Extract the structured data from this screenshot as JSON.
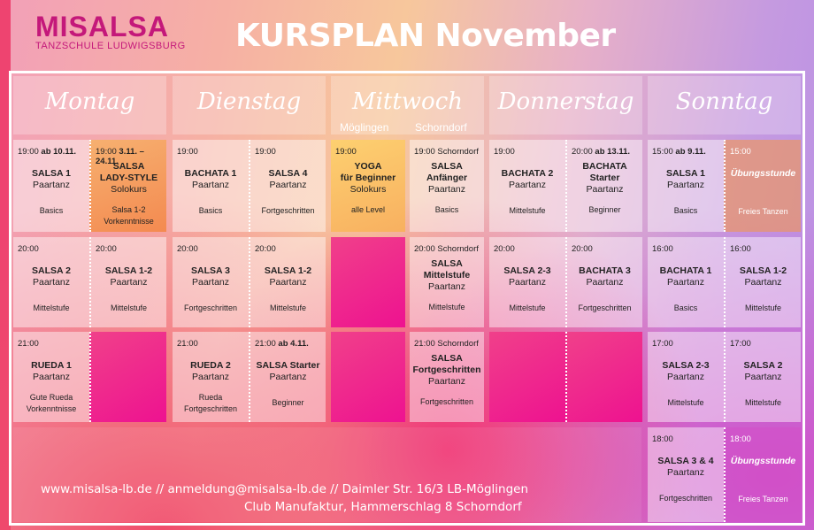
{
  "brand": {
    "name": "MISALSA",
    "subtitle": "TANZSCHULE LUDWIGSBURG",
    "color": "#c4187a"
  },
  "title": "KURSPLAN November",
  "days": [
    {
      "name": "Montag"
    },
    {
      "name": "Dienstag"
    },
    {
      "name": "Mittwoch",
      "locations": [
        "Möglingen",
        "Schorndorf"
      ]
    },
    {
      "name": "Donnerstag"
    },
    {
      "name": "Sonntag"
    }
  ],
  "slots": [
    [
      [
        {
          "time": "19:00",
          "note": "ab 10.11.",
          "title": [
            "SALSA 1"
          ],
          "type": "Paartanz",
          "level": [
            "Basics"
          ]
        },
        {
          "time": "19:00",
          "note": "3.11. – 24.11.",
          "title": [
            "SALSA",
            "LADY-STYLE"
          ],
          "type": "Solokurs",
          "level": [
            "Salsa 1-2",
            "Vorkenntnisse"
          ],
          "style": "orange"
        }
      ],
      [
        {
          "time": "20:00",
          "title": [
            "SALSA 2"
          ],
          "type": "Paartanz",
          "level": [
            "Mittelstufe"
          ]
        },
        {
          "time": "20:00",
          "title": [
            "SALSA 1-2"
          ],
          "type": "Paartanz",
          "level": [
            "Mittelstufe"
          ]
        }
      ],
      [
        {
          "time": "21:00",
          "title": [
            "RUEDA 1"
          ],
          "type": "Paartanz",
          "level": [
            "Gute Rueda",
            "Vorkenntnisse"
          ]
        },
        {
          "style": "empty"
        }
      ]
    ],
    [
      [
        {
          "time": "19:00",
          "title": [
            "BACHATA 1"
          ],
          "type": "Paartanz",
          "level": [
            "Basics"
          ]
        },
        {
          "time": "19:00",
          "title": [
            "SALSA 4"
          ],
          "type": "Paartanz",
          "level": [
            "Fortgeschritten"
          ]
        }
      ],
      [
        {
          "time": "20:00",
          "title": [
            "SALSA 3"
          ],
          "type": "Paartanz",
          "level": [
            "Fortgeschritten"
          ]
        },
        {
          "time": "20:00",
          "title": [
            "SALSA 1-2"
          ],
          "type": "Paartanz",
          "level": [
            "Mittelstufe"
          ]
        }
      ],
      [
        {
          "time": "21:00",
          "title": [
            "RUEDA  2"
          ],
          "type": "Paartanz",
          "level": [
            "Rueda",
            "Fortgeschritten"
          ]
        },
        {
          "time": "21:00",
          "note": "ab 4.11.",
          "title": [
            "SALSA Starter"
          ],
          "type": "Paartanz",
          "level": [
            "Beginner"
          ]
        }
      ]
    ],
    [
      [
        {
          "time": "19:00",
          "title": [
            "YOGA",
            "für Beginner"
          ],
          "type": "Solokurs",
          "level": [
            "alle Level"
          ],
          "style": "yellow"
        },
        {
          "time": "19:00 Schorndorf",
          "title": [
            "SALSA",
            "Anfänger"
          ],
          "type": "Paartanz",
          "level": [
            "Basics"
          ]
        }
      ],
      [
        {
          "style": "empty"
        },
        {
          "time": "20:00 Schorndorf",
          "title": [
            "SALSA",
            "Mittelstufe"
          ],
          "type": "Paartanz",
          "level": [
            "Mittelstufe"
          ]
        }
      ],
      [
        {
          "style": "empty"
        },
        {
          "time": "21:00 Schorndorf",
          "title": [
            "SALSA",
            "Fortgeschritten"
          ],
          "type": "Paartanz",
          "level": [
            "Fortgeschritten"
          ]
        }
      ]
    ],
    [
      [
        {
          "time": "19:00",
          "title": [
            "BACHATA 2"
          ],
          "type": "Paartanz",
          "level": [
            "Mittelstufe"
          ]
        },
        {
          "time": "20:00",
          "note": "ab 13.11.",
          "title": [
            "BACHATA",
            "Starter"
          ],
          "type": "Paartanz",
          "level": [
            "Beginner"
          ]
        }
      ],
      [
        {
          "time": "20:00",
          "title": [
            "SALSA 2-3"
          ],
          "type": "Paartanz",
          "level": [
            "Mittelstufe"
          ]
        },
        {
          "time": "20:00",
          "title": [
            "BACHATA 3"
          ],
          "type": "Paartanz",
          "level": [
            "Fortgeschritten"
          ]
        }
      ],
      [
        {
          "style": "empty"
        },
        {
          "style": "empty"
        }
      ]
    ],
    [
      [
        {
          "time": "15:00",
          "note": "ab 9.11.",
          "title": [
            "SALSA 1"
          ],
          "type": "Paartanz",
          "level": [
            "Basics"
          ]
        },
        {
          "time": "15:00",
          "title": [
            "Übungsstunde"
          ],
          "level": [
            "Freies Tanzen"
          ],
          "style": "ub"
        }
      ],
      [
        {
          "time": "16:00",
          "title": [
            "BACHATA 1"
          ],
          "type": "Paartanz",
          "level": [
            "Basics"
          ]
        },
        {
          "time": "16:00",
          "title": [
            "SALSA 1-2"
          ],
          "type": "Paartanz",
          "level": [
            "Mittelstufe"
          ]
        }
      ],
      [
        {
          "time": "17:00",
          "title": [
            "SALSA 2-3"
          ],
          "type": "Paartanz",
          "level": [
            "Mittelstufe"
          ]
        },
        {
          "time": "17:00",
          "title": [
            "SALSA 2"
          ],
          "type": "Paartanz",
          "level": [
            "Mittelstufe"
          ]
        }
      ],
      [
        {
          "time": "18:00",
          "title": [
            "SALSA 3 & 4"
          ],
          "type": "Paartanz",
          "level": [
            "Fortgeschritten"
          ]
        },
        {
          "time": "18:00",
          "title": [
            "Übungsstunde"
          ],
          "level": [
            "Freies Tanzen"
          ],
          "style": "ub2"
        }
      ]
    ]
  ],
  "footer": {
    "line1": "www.misalsa-lb.de // anmeldung@misalsa-lb.de // Daimler Str. 16/3 LB-Möglingen",
    "line2": "Club Manufaktur, Hammerschlag 8 Schorndorf"
  }
}
